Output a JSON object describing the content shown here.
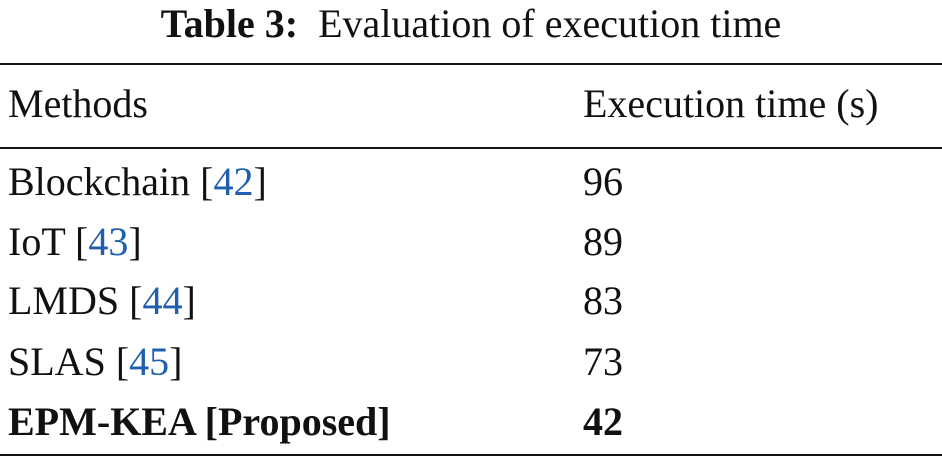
{
  "caption": {
    "label": "Table 3:",
    "text": "Evaluation of execution time"
  },
  "table": {
    "headers": [
      "Methods",
      "Execution time (s)"
    ],
    "rows": [
      {
        "method": [
          "Blockchain [",
          "42",
          "]"
        ],
        "time": 96
      },
      {
        "method": [
          "IoT [",
          "43",
          "]"
        ],
        "time": 89
      },
      {
        "method": [
          "LMDS [",
          "44",
          "]"
        ],
        "time": 83
      },
      {
        "method": [
          "SLAS [",
          "45",
          "]"
        ],
        "time": 73
      },
      {
        "method": [
          "EPM-KEA [Proposed]"
        ],
        "time": 42,
        "bold": true
      }
    ]
  }
}
